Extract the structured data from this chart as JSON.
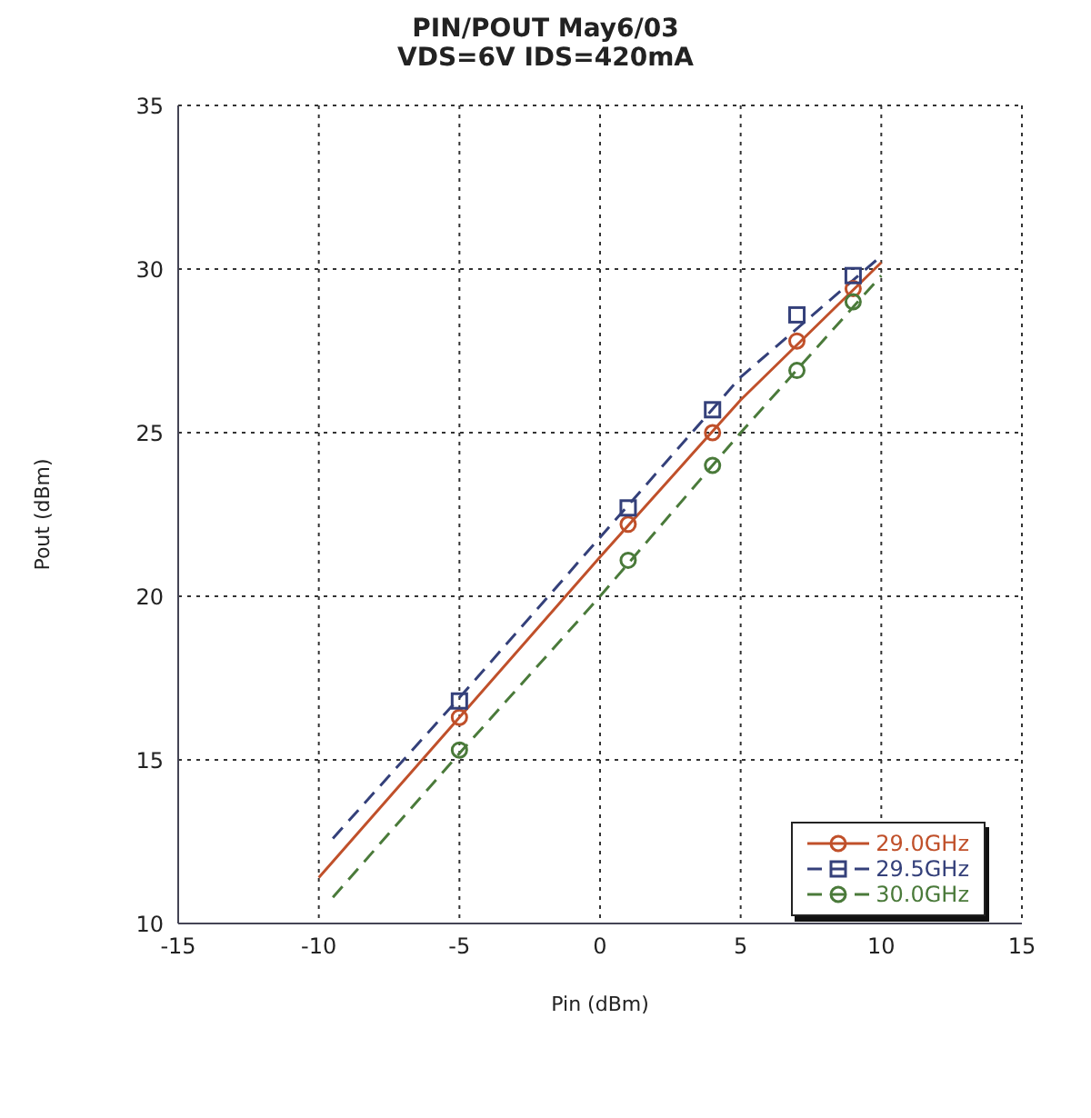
{
  "chart_data": {
    "type": "scatter",
    "title": "PIN/POUT May6/03",
    "subtitle": "VDS=6V IDS=420mA",
    "xlabel": "Pin (dBm)",
    "ylabel": "Pout (dBm)",
    "xlim": [
      -15,
      15
    ],
    "xticks": [
      -15,
      -10,
      -5,
      0,
      5,
      10,
      15
    ],
    "ylim": [
      10,
      35
    ],
    "yticks": [
      10,
      15,
      20,
      25,
      30,
      35
    ],
    "grid": true,
    "legend": "bottom right",
    "series": [
      {
        "name": "29.0GHz",
        "marker": "circle",
        "color": "#c0502a",
        "x": [
          -5,
          1,
          4,
          7,
          9
        ],
        "values": [
          16.3,
          22.2,
          25.0,
          27.8,
          29.4
        ]
      },
      {
        "name": "29.5GHz",
        "marker": "square",
        "color": "#34407a",
        "x": [
          -5,
          1,
          4,
          7,
          9
        ],
        "values": [
          16.8,
          22.7,
          25.7,
          28.6,
          29.8
        ]
      },
      {
        "name": "30.0GHz",
        "marker": "circle",
        "color": "#4a7a3a",
        "x": [
          -5,
          1,
          4,
          7,
          9
        ],
        "values": [
          15.3,
          21.1,
          24.0,
          26.9,
          29.0
        ]
      },
      {
        "type": "line",
        "line_style": "solid",
        "color": "#c0502a",
        "x": [
          -10,
          -5,
          0,
          5,
          10
        ],
        "values": [
          11.4,
          16.3,
          21.2,
          26.0,
          30.2
        ]
      },
      {
        "type": "line",
        "line_style": "dashed",
        "color": "#34407a",
        "x": [
          -9.5,
          -5,
          0,
          5,
          10
        ],
        "values": [
          12.6,
          16.9,
          21.8,
          26.7,
          30.4
        ]
      },
      {
        "type": "line",
        "line_style": "dashed",
        "color": "#4a7a3a",
        "x": [
          -9.5,
          -5,
          0,
          5,
          10
        ],
        "values": [
          10.8,
          15.2,
          20.0,
          25.0,
          29.8
        ]
      }
    ]
  }
}
